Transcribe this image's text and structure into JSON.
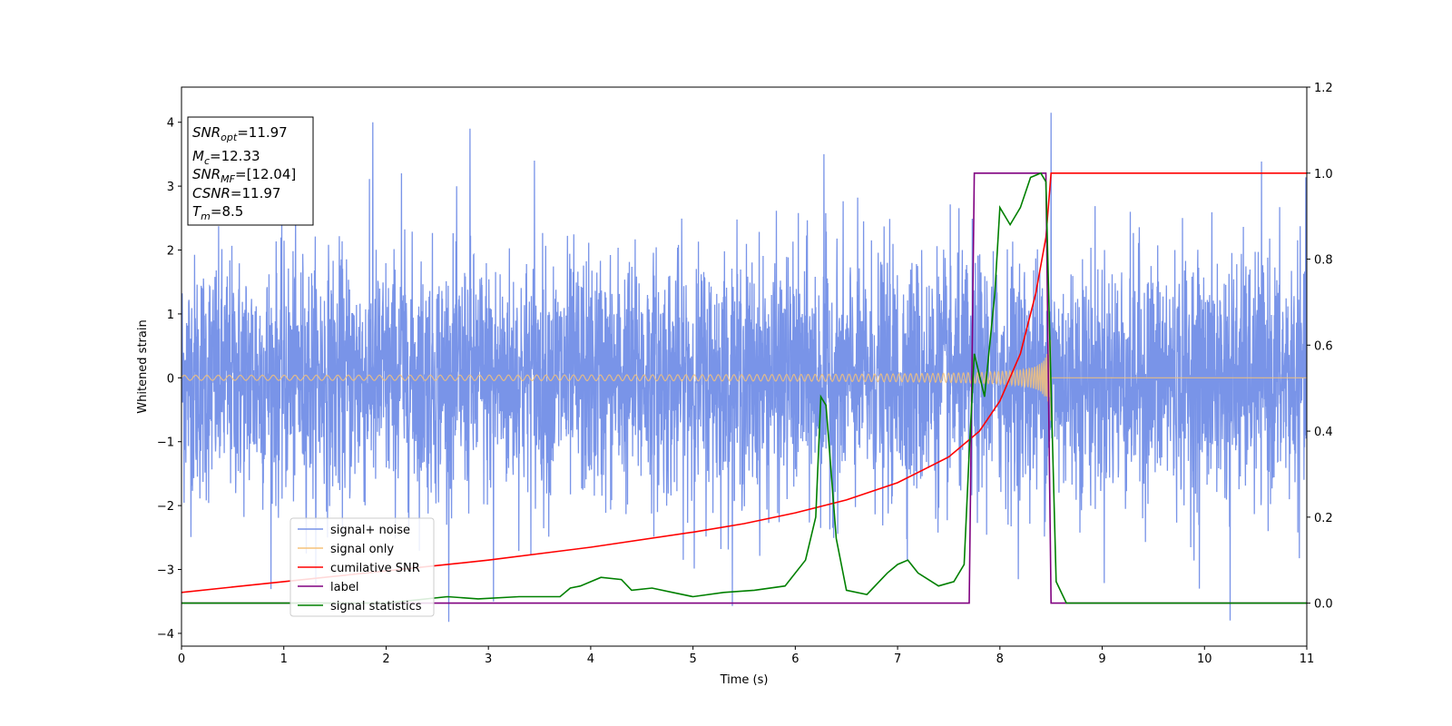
{
  "chart_data": {
    "type": "line",
    "xlabel": "Time (s)",
    "ylabel": "Whitened strain",
    "xlim": [
      0,
      11
    ],
    "ylim": [
      -4.2,
      4.55
    ],
    "y2lim": [
      -0.1,
      1.2
    ],
    "xticks": [
      "0",
      "1",
      "2",
      "3",
      "4",
      "5",
      "6",
      "7",
      "8",
      "9",
      "10",
      "11"
    ],
    "yticks": [
      "4",
      "3",
      "2",
      "1",
      "0",
      "−1",
      "−2",
      "−3",
      "−4"
    ],
    "y2ticks": [
      "0.0",
      "0.2",
      "0.4",
      "0.6",
      "0.8",
      "1.0",
      "1.2"
    ],
    "legend_position": "lower-left",
    "grid": false,
    "annotation": {
      "snr_opt": {
        "base": "SNR",
        "sub": "opt",
        "value": "=11.97"
      },
      "mc": {
        "base": "M",
        "sub": "c",
        "value": "=12.33"
      },
      "snr_mf": {
        "base": "SNR",
        "sub": "MF",
        "value": "=[12.04]"
      },
      "csnr": {
        "base": "CSNR",
        "value": "=11.97"
      },
      "tm": {
        "base": "T",
        "sub": "m",
        "value": "=8.5"
      }
    },
    "series": [
      {
        "name": "signal+ noise",
        "color": "#7994e8",
        "axis": "left",
        "noise_sigma": 0.95,
        "peak_points": [
          [
            1.87,
            4.0
          ],
          [
            2.82,
            3.9
          ],
          [
            8.5,
            4.15
          ],
          [
            10.25,
            -3.8
          ],
          [
            3.05,
            -3.5
          ],
          [
            9.95,
            -3.3
          ],
          [
            6.28,
            3.5
          ],
          [
            2.15,
            3.2
          ],
          [
            3.45,
            3.4
          ]
        ]
      },
      {
        "name": "signal only",
        "color": "#f5c27a",
        "axis": "left",
        "chirp_end": 8.5,
        "peak_amplitude": 0.95
      },
      {
        "name": "cumilative SNR",
        "color": "#ff0000",
        "axis": "right",
        "points": [
          [
            0,
            0.025
          ],
          [
            1,
            0.05
          ],
          [
            2,
            0.075
          ],
          [
            3,
            0.1
          ],
          [
            4,
            0.13
          ],
          [
            5,
            0.165
          ],
          [
            5.5,
            0.185
          ],
          [
            6,
            0.21
          ],
          [
            6.5,
            0.24
          ],
          [
            7,
            0.28
          ],
          [
            7.5,
            0.34
          ],
          [
            7.8,
            0.4
          ],
          [
            8.0,
            0.47
          ],
          [
            8.2,
            0.58
          ],
          [
            8.35,
            0.72
          ],
          [
            8.45,
            0.85
          ],
          [
            8.5,
            1.0
          ],
          [
            11,
            1.0
          ]
        ]
      },
      {
        "name": "label",
        "color": "#800080",
        "axis": "right",
        "points": [
          [
            0,
            0.0
          ],
          [
            7.7,
            0.0
          ],
          [
            7.75,
            1.0
          ],
          [
            8.45,
            1.0
          ],
          [
            8.5,
            0.0
          ],
          [
            11,
            0.0
          ]
        ]
      },
      {
        "name": "signal statistics",
        "color": "#008000",
        "axis": "right",
        "points": [
          [
            0,
            0.0
          ],
          [
            1,
            0.0
          ],
          [
            2,
            0.0
          ],
          [
            2.6,
            0.015
          ],
          [
            2.9,
            0.01
          ],
          [
            3.3,
            0.015
          ],
          [
            3.7,
            0.015
          ],
          [
            3.8,
            0.035
          ],
          [
            3.9,
            0.04
          ],
          [
            4.1,
            0.06
          ],
          [
            4.3,
            0.055
          ],
          [
            4.4,
            0.03
          ],
          [
            4.6,
            0.035
          ],
          [
            4.8,
            0.025
          ],
          [
            5.0,
            0.015
          ],
          [
            5.3,
            0.025
          ],
          [
            5.6,
            0.03
          ],
          [
            5.9,
            0.04
          ],
          [
            6.1,
            0.1
          ],
          [
            6.2,
            0.2
          ],
          [
            6.25,
            0.48
          ],
          [
            6.3,
            0.46
          ],
          [
            6.4,
            0.15
          ],
          [
            6.5,
            0.03
          ],
          [
            6.7,
            0.02
          ],
          [
            6.9,
            0.07
          ],
          [
            7.0,
            0.09
          ],
          [
            7.1,
            0.1
          ],
          [
            7.2,
            0.07
          ],
          [
            7.4,
            0.04
          ],
          [
            7.55,
            0.05
          ],
          [
            7.65,
            0.09
          ],
          [
            7.7,
            0.35
          ],
          [
            7.75,
            0.58
          ],
          [
            7.85,
            0.48
          ],
          [
            7.95,
            0.72
          ],
          [
            8.0,
            0.92
          ],
          [
            8.1,
            0.88
          ],
          [
            8.2,
            0.92
          ],
          [
            8.3,
            0.99
          ],
          [
            8.4,
            1.0
          ],
          [
            8.45,
            0.98
          ],
          [
            8.5,
            0.5
          ],
          [
            8.55,
            0.05
          ],
          [
            8.65,
            0.0
          ],
          [
            11,
            0.0
          ]
        ]
      }
    ]
  }
}
